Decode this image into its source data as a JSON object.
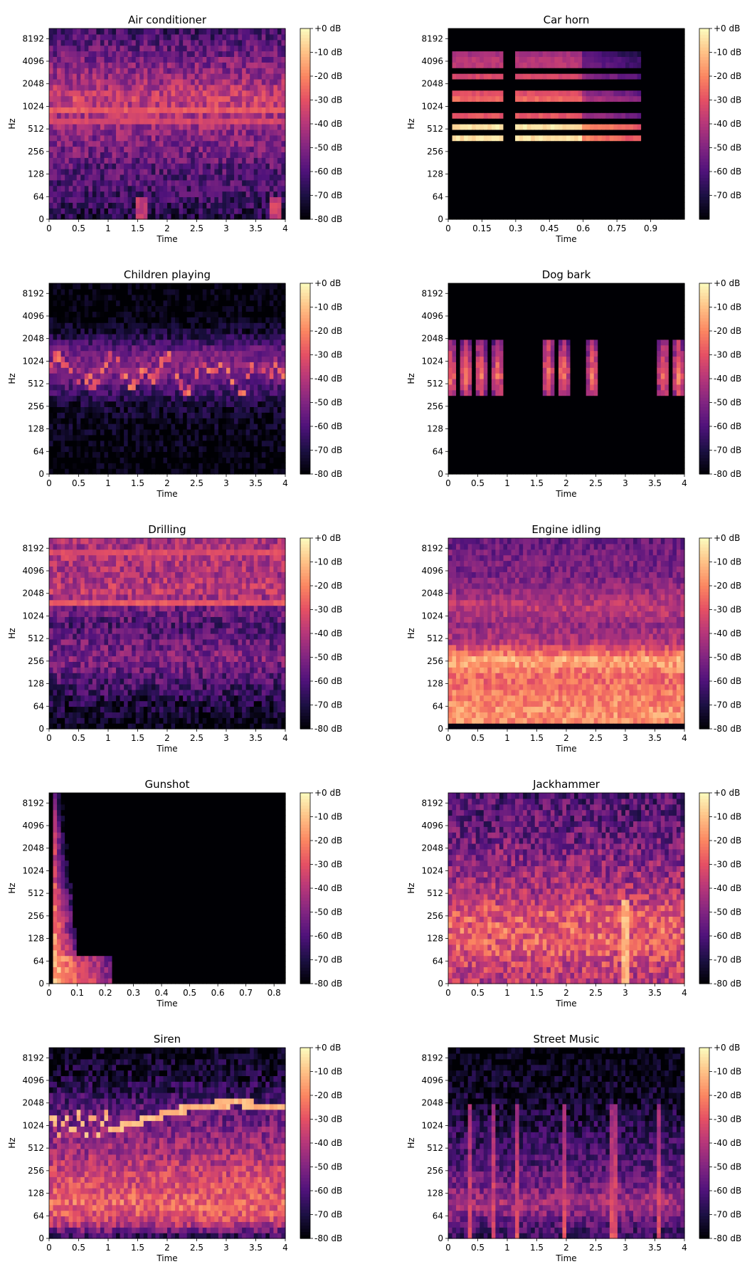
{
  "colorbar": {
    "labels": [
      "+0 dB",
      "-10 dB",
      "-20 dB",
      "-30 dB",
      "-40 dB",
      "-50 dB",
      "-60 dB",
      "-70 dB",
      "-80 dB"
    ],
    "labels_car_horn": [
      "+0 dB",
      "-10 dB",
      "-20 dB",
      "-30 dB",
      "-40 dB",
      "-50 dB",
      "-60 dB",
      "-70 dB"
    ],
    "colormap": [
      "#000004",
      "#1c1044",
      "#4f127b",
      "#812581",
      "#b5367a",
      "#e55064",
      "#fb8761",
      "#fec287",
      "#fcfdbf"
    ]
  },
  "chart_data": [
    {
      "type": "heatmap",
      "title": "Air conditioner",
      "xlabel": "Time",
      "ylabel": "Hz",
      "x_ticks": [
        "0",
        "0.5",
        "1",
        "1.5",
        "2",
        "2.5",
        "3",
        "3.5",
        "4"
      ],
      "xlim": [
        0,
        4
      ],
      "y_ticks": [
        "0",
        "64",
        "128",
        "256",
        "512",
        "1024",
        "2048",
        "4096",
        "8192"
      ],
      "zlim_db": [
        -80,
        0
      ],
      "profile_db": [
        -70,
        -64,
        -60,
        -58,
        -52,
        -48,
        -42,
        -36,
        -44,
        -50,
        -56,
        -64
      ],
      "bands": [
        {
          "freq": 512,
          "db": -30
        },
        {
          "freq": 900,
          "db": -28
        },
        {
          "freq": 680,
          "db": -32
        }
      ]
    },
    {
      "type": "heatmap",
      "title": "Car horn",
      "xlabel": "Time",
      "ylabel": "Hz",
      "x_ticks": [
        "0",
        "0.15",
        "0.3",
        "0.45",
        "0.6",
        "0.75",
        "0.9"
      ],
      "xlim": [
        0,
        1.05
      ],
      "y_ticks": [
        "0",
        "64",
        "128",
        "256",
        "512",
        "1024",
        "2048",
        "4096",
        "8192"
      ],
      "zlim_db": [
        -80,
        0
      ],
      "on_intervals": [
        [
          0.02,
          0.24
        ],
        [
          0.3,
          0.6
        ]
      ],
      "bands": [
        {
          "freq": 520,
          "db": -2
        },
        {
          "freq": 400,
          "db": -4
        },
        {
          "freq": 800,
          "db": -28
        },
        {
          "freq": 1200,
          "db": -22
        },
        {
          "freq": 1600,
          "db": -30
        },
        {
          "freq": 2000,
          "db": -34
        },
        {
          "freq": 2800,
          "db": -30
        },
        {
          "freq": 3400,
          "db": -36
        },
        {
          "freq": 4200,
          "db": -38
        },
        {
          "freq": 5600,
          "db": -40
        }
      ]
    },
    {
      "type": "heatmap",
      "title": "Children playing",
      "xlabel": "Time",
      "ylabel": "Hz",
      "x_ticks": [
        "0",
        "0.5",
        "1",
        "1.5",
        "2",
        "2.5",
        "3",
        "3.5",
        "4"
      ],
      "xlim": [
        0,
        4
      ],
      "y_ticks": [
        "0",
        "64",
        "128",
        "256",
        "512",
        "1024",
        "2048",
        "4096",
        "8192"
      ],
      "zlim_db": [
        -80,
        0
      ],
      "profile_db": [
        -80,
        -80,
        -78,
        -76,
        -72,
        -60,
        -48,
        -52,
        -70,
        -80,
        -80,
        -80
      ]
    },
    {
      "type": "heatmap",
      "title": "Dog bark",
      "xlabel": "Time",
      "ylabel": "Hz",
      "x_ticks": [
        "0",
        "0.5",
        "1",
        "1.5",
        "2",
        "2.5",
        "3",
        "3.5",
        "4"
      ],
      "xlim": [
        0,
        4
      ],
      "y_ticks": [
        "0",
        "64",
        "128",
        "256",
        "512",
        "1024",
        "2048",
        "4096",
        "8192"
      ],
      "zlim_db": [
        -80,
        0
      ],
      "events_time": [
        0.05,
        0.3,
        0.55,
        0.85,
        1.7,
        1.95,
        2.45,
        3.65,
        3.9
      ]
    },
    {
      "type": "heatmap",
      "title": "Drilling",
      "xlabel": "Time",
      "ylabel": "Hz",
      "x_ticks": [
        "0",
        "0.5",
        "1",
        "1.5",
        "2",
        "2.5",
        "3",
        "3.5",
        "4"
      ],
      "xlim": [
        0,
        4
      ],
      "y_ticks": [
        "0",
        "64",
        "128",
        "256",
        "512",
        "1024",
        "2048",
        "4096",
        "8192"
      ],
      "zlim_db": [
        -80,
        0
      ],
      "profile_db": [
        -80,
        -74,
        -66,
        -58,
        -50,
        -54,
        -60,
        -52,
        -38,
        -42,
        -40,
        -44
      ],
      "bands": [
        {
          "freq": 2048,
          "db": -24
        },
        {
          "freq": 1500,
          "db": -28
        },
        {
          "freq": 300,
          "db": -36
        },
        {
          "freq": 7000,
          "db": -30
        }
      ]
    },
    {
      "type": "heatmap",
      "title": "Engine idling",
      "xlabel": "Time",
      "ylabel": "Hz",
      "x_ticks": [
        "0",
        "0.5",
        "1",
        "1.5",
        "2",
        "2.5",
        "3",
        "3.5",
        "4"
      ],
      "xlim": [
        0,
        4
      ],
      "y_ticks": [
        "0",
        "64",
        "128",
        "256",
        "512",
        "1024",
        "2048",
        "4096",
        "8192"
      ],
      "zlim_db": [
        -80,
        0
      ],
      "profile_db": [
        -20,
        -18,
        -22,
        -26,
        -14,
        -40,
        -46,
        -38,
        -46,
        -52,
        -52,
        -56
      ]
    },
    {
      "type": "heatmap",
      "title": "Gunshot",
      "xlabel": "Time",
      "ylabel": "Hz",
      "x_ticks": [
        "0",
        "0.1",
        "0.2",
        "0.3",
        "0.4",
        "0.5",
        "0.6",
        "0.7",
        "0.8"
      ],
      "xlim": [
        0,
        0.84
      ],
      "y_ticks": [
        "0",
        "64",
        "128",
        "256",
        "512",
        "1024",
        "2048",
        "4096",
        "8192"
      ],
      "zlim_db": [
        -80,
        0
      ],
      "onset_time": 0.02,
      "decay_time": 0.09
    },
    {
      "type": "heatmap",
      "title": "Jackhammer",
      "xlabel": "Time",
      "ylabel": "Hz",
      "x_ticks": [
        "0",
        "0.5",
        "1",
        "1.5",
        "2",
        "2.5",
        "3",
        "3.5",
        "4"
      ],
      "xlim": [
        0,
        4
      ],
      "y_ticks": [
        "0",
        "64",
        "128",
        "256",
        "512",
        "1024",
        "2048",
        "4096",
        "8192"
      ],
      "zlim_db": [
        -80,
        0
      ],
      "profile_db": [
        -40,
        -36,
        -30,
        -28,
        -30,
        -40,
        -44,
        -48,
        -52,
        -56,
        -58,
        -60
      ]
    },
    {
      "type": "heatmap",
      "title": "Siren",
      "xlabel": "Time",
      "ylabel": "Hz",
      "x_ticks": [
        "0",
        "0.5",
        "1",
        "1.5",
        "2",
        "2.5",
        "3",
        "3.5",
        "4"
      ],
      "xlim": [
        0,
        4
      ],
      "y_ticks": [
        "0",
        "64",
        "128",
        "256",
        "512",
        "1024",
        "2048",
        "4096",
        "8192"
      ],
      "zlim_db": [
        -80,
        0
      ],
      "profile_db": [
        -70,
        -34,
        -26,
        -32,
        -36,
        -44,
        -48,
        -54,
        -62,
        -70,
        -74,
        -78
      ]
    },
    {
      "type": "heatmap",
      "title": "Street Music",
      "xlabel": "Time",
      "ylabel": "Hz",
      "x_ticks": [
        "0",
        "0.5",
        "1",
        "1.5",
        "2",
        "2.5",
        "3",
        "3.5",
        "4"
      ],
      "xlim": [
        0,
        4
      ],
      "y_ticks": [
        "0",
        "64",
        "128",
        "256",
        "512",
        "1024",
        "2048",
        "4096",
        "8192"
      ],
      "zlim_db": [
        -80,
        0
      ],
      "profile_db": [
        -66,
        -56,
        -42,
        -52,
        -58,
        -62,
        -66,
        -70,
        -74,
        -76,
        -78,
        -80
      ],
      "events_time": [
        0.35,
        0.75,
        1.15,
        1.95,
        2.8,
        3.55
      ]
    }
  ]
}
